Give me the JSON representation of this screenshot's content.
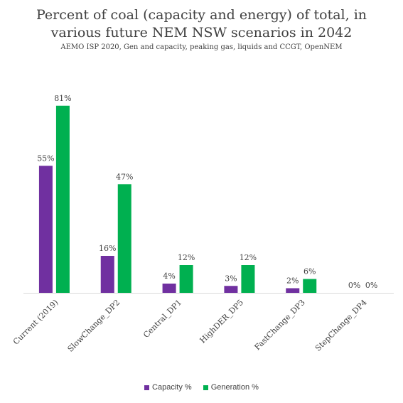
{
  "header": {
    "title_line1": "Percent of coal (capacity and energy) of total, in",
    "title_line2": "various future NEM NSW scenarios in 2042",
    "subtitle": "AEMO ISP 2020, Gen and capacity, peaking gas, liquids and CCGT, OpenNEM"
  },
  "colors": {
    "capacity": "#7030a0",
    "generation": "#00b050",
    "axis": "#d9d9d9",
    "text": "#404040"
  },
  "chart_data": {
    "type": "bar",
    "title": "Percent of coal (capacity and energy) of total, in various future NEM NSW scenarios in 2042",
    "subtitle": "AEMO ISP 2020, Gen and capacity, peaking gas, liquids and CCGT, OpenNEM",
    "categories": [
      "Current (2019)",
      "SlowChange_DP2",
      "Central_DP1",
      "HighDER_DP5",
      "FastChange_DP3",
      "StepChange_DP4"
    ],
    "series": [
      {
        "name": "Capacity %",
        "values": [
          55,
          16,
          4,
          3,
          2,
          0
        ],
        "labels": [
          "55%",
          "16%",
          "4%",
          "3%",
          "2%",
          "0%"
        ]
      },
      {
        "name": "Generation %",
        "values": [
          81,
          47,
          12,
          12,
          6,
          0
        ],
        "labels": [
          "81%",
          "47%",
          "12%",
          "12%",
          "6%",
          "0%"
        ]
      }
    ],
    "ylim": [
      0,
      100
    ],
    "grid": false,
    "legend_position": "bottom"
  }
}
